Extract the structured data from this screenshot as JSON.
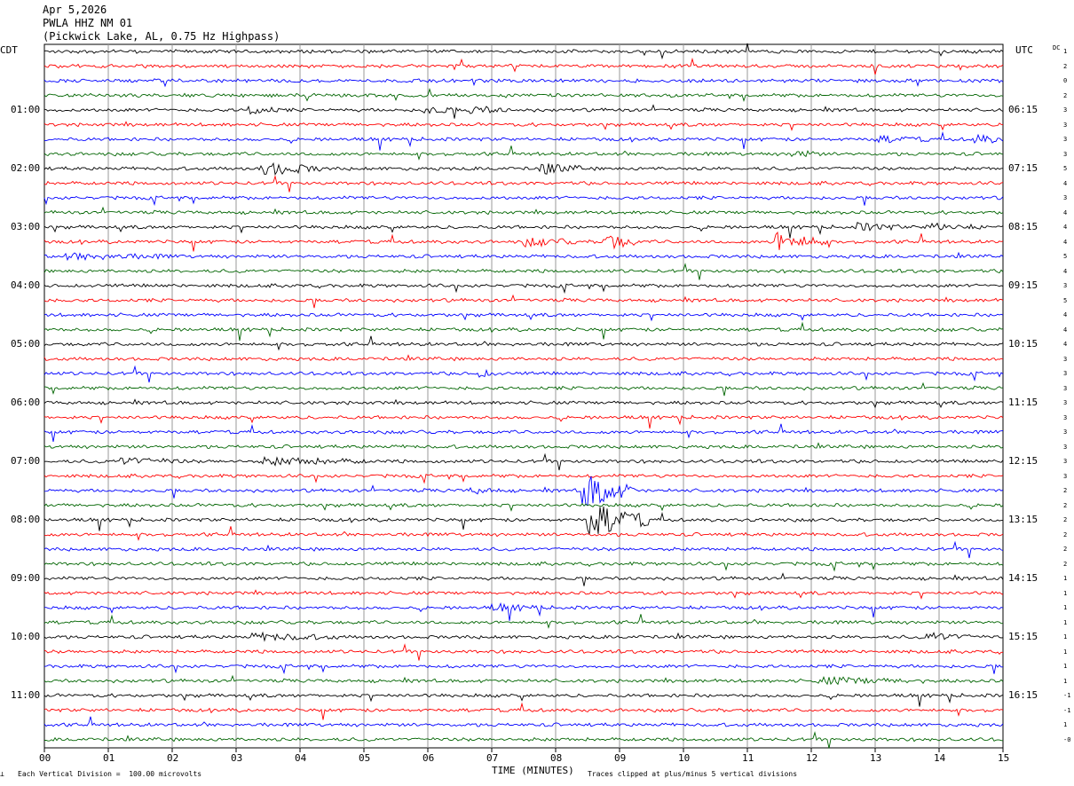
{
  "header": {
    "date": "Apr 5,2026",
    "station": "PWLA HHZ NM 01",
    "location": "(Pickwick Lake, AL, 0.75 Hz Highpass)"
  },
  "axes": {
    "left_zone": "CDT",
    "right_zone": "UTC",
    "dc_label": "DC",
    "xlabel": "TIME (MINUTES)"
  },
  "footer": {
    "scale_note": "Each Vertical Division =  100.00 microvolts",
    "clip_note": "Traces clipped at plus/minus 5 vertical divisions"
  },
  "colors": {
    "black": "#000000",
    "red": "#ff0000",
    "blue": "#0000ff",
    "green": "#006400",
    "grid": "#9a9a9a"
  },
  "chart_data": {
    "type": "line",
    "title": "PWLA HHZ NM 01",
    "x_ticks": [
      "00",
      "01",
      "02",
      "03",
      "04",
      "05",
      "06",
      "07",
      "08",
      "09",
      "10",
      "11",
      "12",
      "13",
      "14",
      "15"
    ],
    "xlim": [
      0,
      15
    ],
    "trace_count": 48,
    "minutes_per_trace": 15,
    "trace_colors": [
      "black",
      "red",
      "blue",
      "green"
    ],
    "left_labels": [
      {
        "trace": 4,
        "text": "01:00"
      },
      {
        "trace": 8,
        "text": "02:00"
      },
      {
        "trace": 12,
        "text": "03:00"
      },
      {
        "trace": 16,
        "text": "04:00"
      },
      {
        "trace": 20,
        "text": "05:00"
      },
      {
        "trace": 24,
        "text": "06:00"
      },
      {
        "trace": 28,
        "text": "07:00"
      },
      {
        "trace": 32,
        "text": "08:00"
      },
      {
        "trace": 36,
        "text": "09:00"
      },
      {
        "trace": 40,
        "text": "10:00"
      },
      {
        "trace": 44,
        "text": "11:00"
      }
    ],
    "right_labels": [
      {
        "trace": 4,
        "text": "06:15"
      },
      {
        "trace": 8,
        "text": "07:15"
      },
      {
        "trace": 12,
        "text": "08:15"
      },
      {
        "trace": 16,
        "text": "09:15"
      },
      {
        "trace": 20,
        "text": "10:15"
      },
      {
        "trace": 24,
        "text": "11:15"
      },
      {
        "trace": 28,
        "text": "12:15"
      },
      {
        "trace": 32,
        "text": "13:15"
      },
      {
        "trace": 36,
        "text": "14:15"
      },
      {
        "trace": 40,
        "text": "15:15"
      },
      {
        "trace": 44,
        "text": "16:15"
      }
    ],
    "dc_offsets": [
      "1",
      "2",
      "0",
      "2",
      "3",
      "3",
      "3",
      "3",
      "5",
      "4",
      "3",
      "4",
      "4",
      "4",
      "5",
      "4",
      "3",
      "5",
      "4",
      "4",
      "4",
      "3",
      "3",
      "3",
      "3",
      "3",
      "3",
      "3",
      "3",
      "3",
      "2",
      "2",
      "2",
      "2",
      "2",
      "2",
      "1",
      "1",
      "1",
      "1",
      "1",
      "1",
      "1",
      "1",
      "-1",
      "-1",
      "1",
      "-0"
    ],
    "events": [
      {
        "trace": 4,
        "minute": 3.25,
        "amp": 1.4,
        "dur": 0.3
      },
      {
        "trace": 4,
        "minute": 6.0,
        "amp": 1.3,
        "dur": 0.3
      },
      {
        "trace": 4,
        "minute": 6.7,
        "amp": 1.1,
        "dur": 0.4
      },
      {
        "trace": 6,
        "minute": 13.1,
        "amp": 0.9,
        "dur": 0.5
      },
      {
        "trace": 6,
        "minute": 14.6,
        "amp": 1.4,
        "dur": 0.3
      },
      {
        "trace": 7,
        "minute": 11.7,
        "amp": 1.3,
        "dur": 0.3
      },
      {
        "trace": 8,
        "minute": 3.5,
        "amp": 2.2,
        "dur": 0.6
      },
      {
        "trace": 8,
        "minute": 7.8,
        "amp": 1.8,
        "dur": 0.4
      },
      {
        "trace": 12,
        "minute": 12.8,
        "amp": 1.3,
        "dur": 0.4
      },
      {
        "trace": 12,
        "minute": 13.9,
        "amp": 1.1,
        "dur": 0.5
      },
      {
        "trace": 13,
        "minute": 8.8,
        "amp": 3.0,
        "dur": 0.3
      },
      {
        "trace": 13,
        "minute": 11.5,
        "amp": 3.4,
        "dur": 0.5
      },
      {
        "trace": 13,
        "minute": 7.6,
        "amp": 1.3,
        "dur": 0.5
      },
      {
        "trace": 14,
        "minute": 0.5,
        "amp": 0.9,
        "dur": 1.0
      },
      {
        "trace": 22,
        "minute": 6.8,
        "amp": 1.2,
        "dur": 0.2
      },
      {
        "trace": 28,
        "minute": 1.3,
        "amp": 1.1,
        "dur": 0.6
      },
      {
        "trace": 28,
        "minute": 3.6,
        "amp": 1.1,
        "dur": 1.0
      },
      {
        "trace": 30,
        "minute": 6.7,
        "amp": 1.0,
        "dur": 0.3
      },
      {
        "trace": 30,
        "minute": 8.5,
        "amp": 6.0,
        "dur": 0.5
      },
      {
        "trace": 32,
        "minute": 8.6,
        "amp": 6.0,
        "dur": 0.6
      },
      {
        "trace": 38,
        "minute": 7.1,
        "amp": 1.0,
        "dur": 0.5
      },
      {
        "trace": 40,
        "minute": 3.4,
        "amp": 1.0,
        "dur": 0.8
      },
      {
        "trace": 40,
        "minute": 13.9,
        "amp": 1.1,
        "dur": 0.5
      },
      {
        "trace": 43,
        "minute": 12.3,
        "amp": 1.0,
        "dur": 1.0
      }
    ]
  }
}
